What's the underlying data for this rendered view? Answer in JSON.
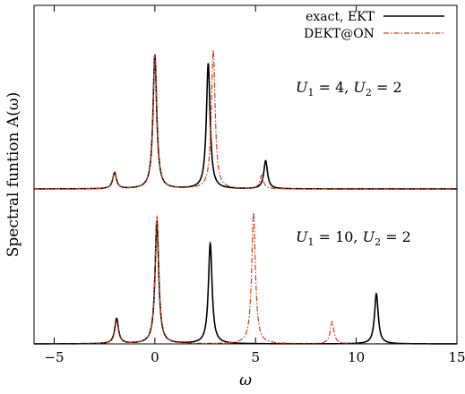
{
  "chart_data": {
    "type": "line",
    "xlabel": "ω",
    "ylabel": "Spectral funtion A(ω)",
    "xlim": [
      -6,
      15
    ],
    "xticks": [
      "−5",
      "0",
      "5",
      "10",
      "15"
    ],
    "xtick_values": [
      -5,
      0,
      5,
      10,
      15
    ],
    "grid": false,
    "legend_position": "top-right",
    "legend": [
      {
        "label": "exact, EKT",
        "color": "#000000",
        "dash": "solid"
      },
      {
        "label": "DEKT@ON",
        "color": "#d4401a",
        "dash": "dash-dot"
      }
    ],
    "panels": [
      {
        "annotation": "U1 = 4, U2 = 2",
        "annotation_parts": {
          "a": "U",
          "a_sub": "1",
          "a_val": " = 4, ",
          "b": "U",
          "b_sub": "2",
          "b_val": " = 2"
        },
        "series": [
          {
            "label": "exact, EKT",
            "peaks": [
              {
                "x": -2.0,
                "height": 0.11
              },
              {
                "x": 0.0,
                "height": 0.91
              },
              {
                "x": 2.65,
                "height": 0.85
              },
              {
                "x": 5.5,
                "height": 0.19
              }
            ]
          },
          {
            "label": "DEKT@ON",
            "peaks": [
              {
                "x": -2.0,
                "height": 0.11
              },
              {
                "x": 0.0,
                "height": 0.91
              },
              {
                "x": 2.9,
                "height": 0.94
              },
              {
                "x": 5.3,
                "height": 0.09
              }
            ]
          }
        ]
      },
      {
        "annotation": "U1 = 10, U2 = 2",
        "annotation_parts": {
          "a": "U",
          "a_sub": "1",
          "a_val": " = 10, ",
          "b": "U",
          "b_sub": "2",
          "b_val": " = 2"
        },
        "series": [
          {
            "label": "exact, EKT",
            "peaks": [
              {
                "x": -1.9,
                "height": 0.17
              },
              {
                "x": 0.1,
                "height": 0.83
              },
              {
                "x": 2.75,
                "height": 0.68
              },
              {
                "x": 11.0,
                "height": 0.34
              }
            ]
          },
          {
            "label": "DEKT@ON",
            "peaks": [
              {
                "x": -1.9,
                "height": 0.15
              },
              {
                "x": 0.1,
                "height": 0.87
              },
              {
                "x": 4.9,
                "height": 0.89
              },
              {
                "x": 8.8,
                "height": 0.15
              }
            ]
          }
        ]
      }
    ]
  }
}
